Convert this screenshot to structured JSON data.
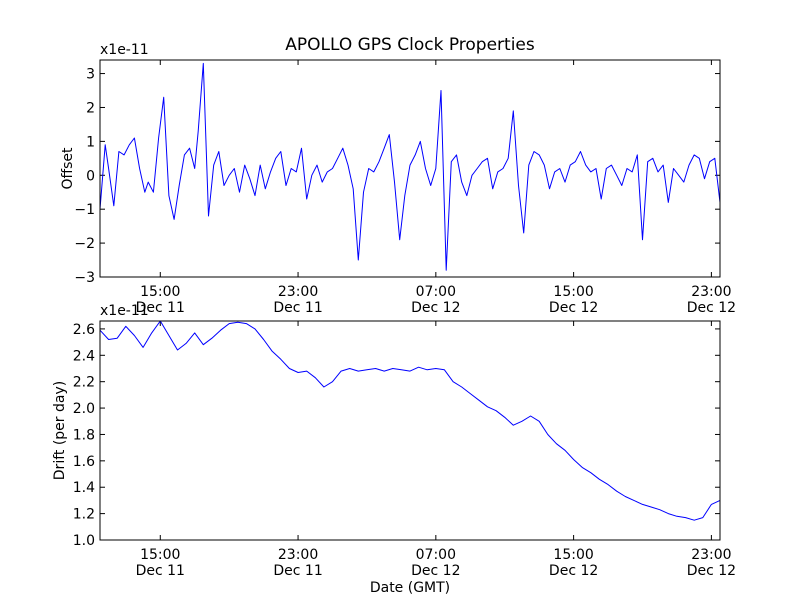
{
  "chart_data": [
    {
      "type": "line",
      "title": "APOLLO GPS Clock Properties",
      "ylabel": "Offset",
      "xlabel": "",
      "y_offset_text": "x1e-11",
      "x_unit": "hours since Dec 11 00:00 GMT",
      "xlim": [
        11.5,
        47.5
      ],
      "ylim": [
        -3,
        3.4
      ],
      "y_ticks": [
        -3,
        -2,
        -1,
        0,
        1,
        2,
        3
      ],
      "y_tick_labels": [
        "−3",
        "−2",
        "−1",
        "0",
        "1",
        "2",
        "3"
      ],
      "x_ticks": [
        15,
        23,
        31,
        39,
        47
      ],
      "x_tick_labels": [
        [
          "15:00",
          "Dec 11"
        ],
        [
          "23:00",
          "Dec 11"
        ],
        [
          "07:00",
          "Dec 12"
        ],
        [
          "15:00",
          "Dec 12"
        ],
        [
          "23:00",
          "Dec 12"
        ]
      ],
      "grid": false,
      "series": [
        {
          "name": "offset",
          "color": "#0000ff",
          "x": [
            11.5,
            11.8,
            12.0,
            12.3,
            12.6,
            12.9,
            13.2,
            13.5,
            13.8,
            14.1,
            14.3,
            14.6,
            14.9,
            15.2,
            15.5,
            15.8,
            16.1,
            16.4,
            16.7,
            17.0,
            17.2,
            17.5,
            17.8,
            18.1,
            18.4,
            18.7,
            19.0,
            19.3,
            19.6,
            19.9,
            20.2,
            20.5,
            20.8,
            21.1,
            21.4,
            21.7,
            22.0,
            22.3,
            22.6,
            22.9,
            23.2,
            23.5,
            23.8,
            24.1,
            24.4,
            24.7,
            25.0,
            25.3,
            25.6,
            25.9,
            26.2,
            26.5,
            26.8,
            27.1,
            27.4,
            27.7,
            28.0,
            28.3,
            28.6,
            28.9,
            29.2,
            29.5,
            29.8,
            30.1,
            30.4,
            30.7,
            31.0,
            31.3,
            31.6,
            31.9,
            32.2,
            32.5,
            32.8,
            33.1,
            33.4,
            33.7,
            34.0,
            34.3,
            34.6,
            34.9,
            35.2,
            35.5,
            35.8,
            36.1,
            36.4,
            36.7,
            37.0,
            37.3,
            37.6,
            37.9,
            38.2,
            38.5,
            38.8,
            39.1,
            39.4,
            39.7,
            40.0,
            40.3,
            40.6,
            40.9,
            41.2,
            41.5,
            41.8,
            42.1,
            42.4,
            42.7,
            43.0,
            43.3,
            43.6,
            43.9,
            44.2,
            44.5,
            44.8,
            45.1,
            45.4,
            45.7,
            46.0,
            46.3,
            46.6,
            46.9,
            47.2,
            47.5
          ],
          "values": [
            -1.0,
            0.9,
            0.2,
            -0.9,
            0.7,
            0.6,
            0.9,
            1.1,
            0.2,
            -0.5,
            -0.2,
            -0.5,
            1.1,
            2.3,
            -0.6,
            -1.3,
            -0.3,
            0.6,
            0.8,
            0.2,
            1.3,
            3.3,
            -1.2,
            0.3,
            0.7,
            -0.3,
            0.0,
            0.2,
            -0.5,
            0.3,
            -0.1,
            -0.6,
            0.3,
            -0.4,
            0.1,
            0.5,
            0.7,
            -0.3,
            0.2,
            0.1,
            0.8,
            -0.7,
            0.0,
            0.3,
            -0.2,
            0.1,
            0.2,
            0.5,
            0.8,
            0.3,
            -0.4,
            -2.5,
            -0.5,
            0.2,
            0.1,
            0.4,
            0.8,
            1.2,
            -0.2,
            -1.9,
            -0.6,
            0.3,
            0.6,
            1.0,
            0.2,
            -0.3,
            0.2,
            2.5,
            -2.8,
            0.4,
            0.6,
            -0.2,
            -0.6,
            0.0,
            0.2,
            0.4,
            0.5,
            -0.4,
            0.1,
            0.2,
            0.5,
            1.9,
            -0.3,
            -1.7,
            0.3,
            0.7,
            0.6,
            0.3,
            -0.4,
            0.1,
            0.2,
            -0.2,
            0.3,
            0.4,
            0.7,
            0.3,
            0.1,
            0.2,
            -0.7,
            0.2,
            0.3,
            0.0,
            -0.3,
            0.2,
            0.1,
            0.6,
            -1.9,
            0.4,
            0.5,
            0.1,
            0.3,
            -0.8,
            0.2,
            0.0,
            -0.2,
            0.3,
            0.6,
            0.5,
            -0.1,
            0.4,
            0.5,
            -0.8
          ]
        }
      ]
    },
    {
      "type": "line",
      "title": "",
      "ylabel": "Drift (per day)",
      "xlabel": "Date (GMT)",
      "y_offset_text": "x1e-11",
      "x_unit": "hours since Dec 11 00:00 GMT",
      "xlim": [
        11.5,
        47.5
      ],
      "ylim": [
        1.0,
        2.66
      ],
      "y_ticks": [
        1.0,
        1.2,
        1.4,
        1.6,
        1.8,
        2.0,
        2.2,
        2.4,
        2.6
      ],
      "y_tick_labels": [
        "1.0",
        "1.2",
        "1.4",
        "1.6",
        "1.8",
        "2.0",
        "2.2",
        "2.4",
        "2.6"
      ],
      "x_ticks": [
        15,
        23,
        31,
        39,
        47
      ],
      "x_tick_labels": [
        [
          "15:00",
          "Dec 11"
        ],
        [
          "23:00",
          "Dec 11"
        ],
        [
          "07:00",
          "Dec 12"
        ],
        [
          "15:00",
          "Dec 12"
        ],
        [
          "23:00",
          "Dec 12"
        ]
      ],
      "grid": false,
      "series": [
        {
          "name": "drift",
          "color": "#0000ff",
          "x": [
            11.5,
            12.0,
            12.5,
            13.0,
            13.5,
            14.0,
            14.5,
            15.0,
            15.5,
            16.0,
            16.5,
            17.0,
            17.5,
            18.0,
            18.5,
            19.0,
            19.5,
            20.0,
            20.5,
            21.0,
            21.5,
            22.0,
            22.5,
            23.0,
            23.5,
            24.0,
            24.5,
            25.0,
            25.5,
            26.0,
            26.5,
            27.0,
            27.5,
            28.0,
            28.5,
            29.0,
            29.5,
            30.0,
            30.5,
            31.0,
            31.5,
            32.0,
            32.5,
            33.0,
            33.5,
            34.0,
            34.5,
            35.0,
            35.5,
            36.0,
            36.5,
            37.0,
            37.5,
            38.0,
            38.5,
            39.0,
            39.5,
            40.0,
            40.5,
            41.0,
            41.5,
            42.0,
            42.5,
            43.0,
            43.5,
            44.0,
            44.5,
            45.0,
            45.5,
            46.0,
            46.5,
            47.0,
            47.5
          ],
          "values": [
            2.59,
            2.52,
            2.53,
            2.62,
            2.55,
            2.46,
            2.57,
            2.66,
            2.55,
            2.44,
            2.49,
            2.57,
            2.48,
            2.53,
            2.59,
            2.64,
            2.65,
            2.64,
            2.6,
            2.52,
            2.43,
            2.37,
            2.3,
            2.27,
            2.28,
            2.23,
            2.16,
            2.2,
            2.28,
            2.3,
            2.28,
            2.29,
            2.3,
            2.28,
            2.3,
            2.29,
            2.28,
            2.31,
            2.29,
            2.3,
            2.29,
            2.2,
            2.16,
            2.11,
            2.06,
            2.01,
            1.98,
            1.93,
            1.87,
            1.9,
            1.94,
            1.9,
            1.8,
            1.73,
            1.68,
            1.61,
            1.55,
            1.51,
            1.46,
            1.42,
            1.37,
            1.33,
            1.3,
            1.27,
            1.25,
            1.23,
            1.2,
            1.18,
            1.17,
            1.15,
            1.17,
            1.27,
            1.3
          ]
        }
      ]
    }
  ]
}
